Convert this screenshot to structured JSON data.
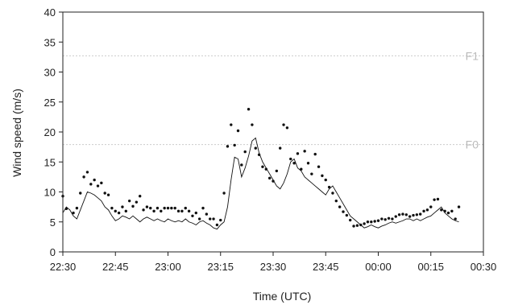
{
  "chart_data": {
    "type": "line",
    "xlabel": "Time (UTC)",
    "ylabel": "Wind speed (m/s)",
    "xlim": [
      "22:30",
      "00:30"
    ],
    "ylim": [
      0,
      40
    ],
    "x_tick_labels": [
      "22:30",
      "22:45",
      "23:00",
      "23:15",
      "23:30",
      "23:45",
      "00:00",
      "00:15",
      "00:30"
    ],
    "y_tick_labels": [
      "0",
      "5",
      "10",
      "15",
      "20",
      "25",
      "30",
      "35",
      "40"
    ],
    "y_ticks": [
      0,
      5,
      10,
      15,
      20,
      25,
      30,
      35,
      40
    ],
    "grid": false,
    "legend": "none",
    "reference_lines": [
      {
        "label": "F1",
        "value": 32.7,
        "color": "#cccccc"
      },
      {
        "label": "F0",
        "value": 17.9,
        "color": "#cccccc"
      }
    ],
    "series": [
      {
        "style": "solid-line",
        "color": "#111111",
        "x": [
          "22:30",
          "22:31",
          "22:32",
          "22:33",
          "22:34",
          "22:35",
          "22:36",
          "22:37",
          "22:38",
          "22:39",
          "22:40",
          "22:41",
          "22:42",
          "22:43",
          "22:44",
          "22:45",
          "22:46",
          "22:47",
          "22:48",
          "22:49",
          "22:50",
          "22:51",
          "22:52",
          "22:53",
          "22:54",
          "22:55",
          "22:56",
          "22:57",
          "22:58",
          "22:59",
          "23:00",
          "23:01",
          "23:02",
          "23:03",
          "23:04",
          "23:05",
          "23:06",
          "23:07",
          "23:08",
          "23:09",
          "23:10",
          "23:11",
          "23:12",
          "23:13",
          "23:14",
          "23:15",
          "23:16",
          "23:17",
          "23:18",
          "23:19",
          "23:20",
          "23:21",
          "23:22",
          "23:23",
          "23:24",
          "23:25",
          "23:26",
          "23:27",
          "23:28",
          "23:29",
          "23:30",
          "23:31",
          "23:32",
          "23:33",
          "23:34",
          "23:35",
          "23:36",
          "23:37",
          "23:38",
          "23:39",
          "23:40",
          "23:41",
          "23:42",
          "23:43",
          "23:44",
          "23:45",
          "23:46",
          "23:47",
          "23:48",
          "23:49",
          "23:50",
          "23:51",
          "23:52",
          "23:53",
          "23:54",
          "23:55",
          "23:56",
          "23:57",
          "23:58",
          "23:59",
          "00:00",
          "00:01",
          "00:02",
          "00:03",
          "00:04",
          "00:05",
          "00:06",
          "00:07",
          "00:08",
          "00:09",
          "00:10",
          "00:11",
          "00:12",
          "00:13",
          "00:14",
          "00:15",
          "00:16",
          "00:17",
          "00:18",
          "00:19",
          "00:20",
          "00:21",
          "00:22",
          "00:23"
        ],
        "y": [
          6.5,
          7.5,
          7,
          6,
          5.5,
          7,
          8.5,
          10,
          9.8,
          9.5,
          9,
          8.5,
          7.5,
          7,
          6,
          5.2,
          5.5,
          6,
          5.8,
          5.5,
          6,
          5.5,
          5,
          5.5,
          5.8,
          5.5,
          5.2,
          5.5,
          5.2,
          5,
          5.5,
          5.2,
          5,
          5.2,
          5,
          5.5,
          5,
          4.8,
          4.5,
          5,
          5.2,
          4.8,
          4.5,
          4,
          3.8,
          4.5,
          5,
          7.5,
          12,
          15.8,
          15.5,
          12.5,
          14,
          16,
          18.5,
          19,
          16.5,
          15,
          14,
          13,
          12,
          11,
          10.5,
          11.5,
          13,
          15,
          15.5,
          14,
          13.5,
          12.5,
          12,
          11.5,
          11,
          10.5,
          10,
          9.5,
          10.5,
          11,
          10,
          9,
          8,
          7,
          6,
          5.5,
          5,
          4.5,
          4,
          4.2,
          4.5,
          4.2,
          4,
          4.3,
          4.5,
          4.8,
          5,
          4.8,
          5,
          5.2,
          5.5,
          5.5,
          5.2,
          5.5,
          5.2,
          5.5,
          5.8,
          6,
          6.5,
          7,
          7.5,
          6.5,
          6,
          5.5,
          5.2,
          5
        ]
      },
      {
        "style": "points",
        "color": "#111111",
        "x": [
          "22:30",
          "22:31",
          "22:33",
          "22:34",
          "22:35",
          "22:36",
          "22:37",
          "22:38",
          "22:39",
          "22:40",
          "22:41",
          "22:42",
          "22:43",
          "22:44",
          "22:45",
          "22:46",
          "22:47",
          "22:48",
          "22:49",
          "22:50",
          "22:51",
          "22:52",
          "22:53",
          "22:54",
          "22:55",
          "22:56",
          "22:57",
          "22:58",
          "22:59",
          "23:00",
          "23:01",
          "23:02",
          "23:03",
          "23:04",
          "23:05",
          "23:06",
          "23:07",
          "23:08",
          "23:09",
          "23:10",
          "23:11",
          "23:12",
          "23:13",
          "23:14",
          "23:15",
          "23:16",
          "23:17",
          "23:18",
          "23:19",
          "23:20",
          "23:21",
          "23:22",
          "23:23",
          "23:24",
          "23:25",
          "23:26",
          "23:27",
          "23:28",
          "23:29",
          "23:30",
          "23:31",
          "23:32",
          "23:33",
          "23:34",
          "23:35",
          "23:36",
          "23:37",
          "23:38",
          "23:39",
          "23:40",
          "23:41",
          "23:42",
          "23:43",
          "23:44",
          "23:45",
          "23:46",
          "23:47",
          "23:48",
          "23:49",
          "23:50",
          "23:51",
          "23:52",
          "23:53",
          "23:54",
          "23:55",
          "23:56",
          "23:57",
          "23:58",
          "23:59",
          "00:00",
          "00:01",
          "00:02",
          "00:03",
          "00:04",
          "00:05",
          "00:06",
          "00:07",
          "00:08",
          "00:09",
          "00:10",
          "00:11",
          "00:12",
          "00:13",
          "00:14",
          "00:15",
          "00:16",
          "00:17",
          "00:18",
          "00:19",
          "00:20",
          "00:21",
          "00:22",
          "00:23"
        ],
        "y": [
          9.3,
          7.2,
          6.5,
          7.3,
          9.8,
          12.5,
          13.3,
          11.3,
          12,
          11,
          11.5,
          9.8,
          9.5,
          7.3,
          6.8,
          6.5,
          7.5,
          6.8,
          8.5,
          7.6,
          8.3,
          9.3,
          7,
          7.5,
          7.3,
          6.8,
          7.3,
          6.8,
          7.3,
          7.3,
          7.3,
          7.3,
          6.8,
          6.8,
          7.3,
          6.8,
          6,
          6.5,
          5.5,
          7.3,
          6.3,
          5.5,
          5.5,
          4.5,
          5.3,
          9.8,
          17.6,
          21.2,
          17.8,
          20.2,
          14.5,
          16.7,
          23.8,
          21.2,
          17.3,
          16.2,
          14.2,
          13.8,
          12.3,
          11.8,
          13.5,
          17.3,
          21.2,
          20.7,
          15.5,
          14.8,
          16.4,
          13.8,
          16.8,
          14.8,
          13,
          16.3,
          14.2,
          12.7,
          12,
          10.8,
          9.8,
          8.5,
          7.5,
          6.7,
          6.1,
          5.3,
          4.3,
          4.4,
          4.5,
          4.7,
          5,
          5,
          5.1,
          5.2,
          5.5,
          5.4,
          5.6,
          5.5,
          5.9,
          6.2,
          6.3,
          6.2,
          5.9,
          6.1,
          6.2,
          6.3,
          6.8,
          7,
          7.5,
          8.7,
          8.8,
          7,
          6.8,
          6.5,
          6.8,
          5.5,
          7.5
        ]
      }
    ]
  }
}
